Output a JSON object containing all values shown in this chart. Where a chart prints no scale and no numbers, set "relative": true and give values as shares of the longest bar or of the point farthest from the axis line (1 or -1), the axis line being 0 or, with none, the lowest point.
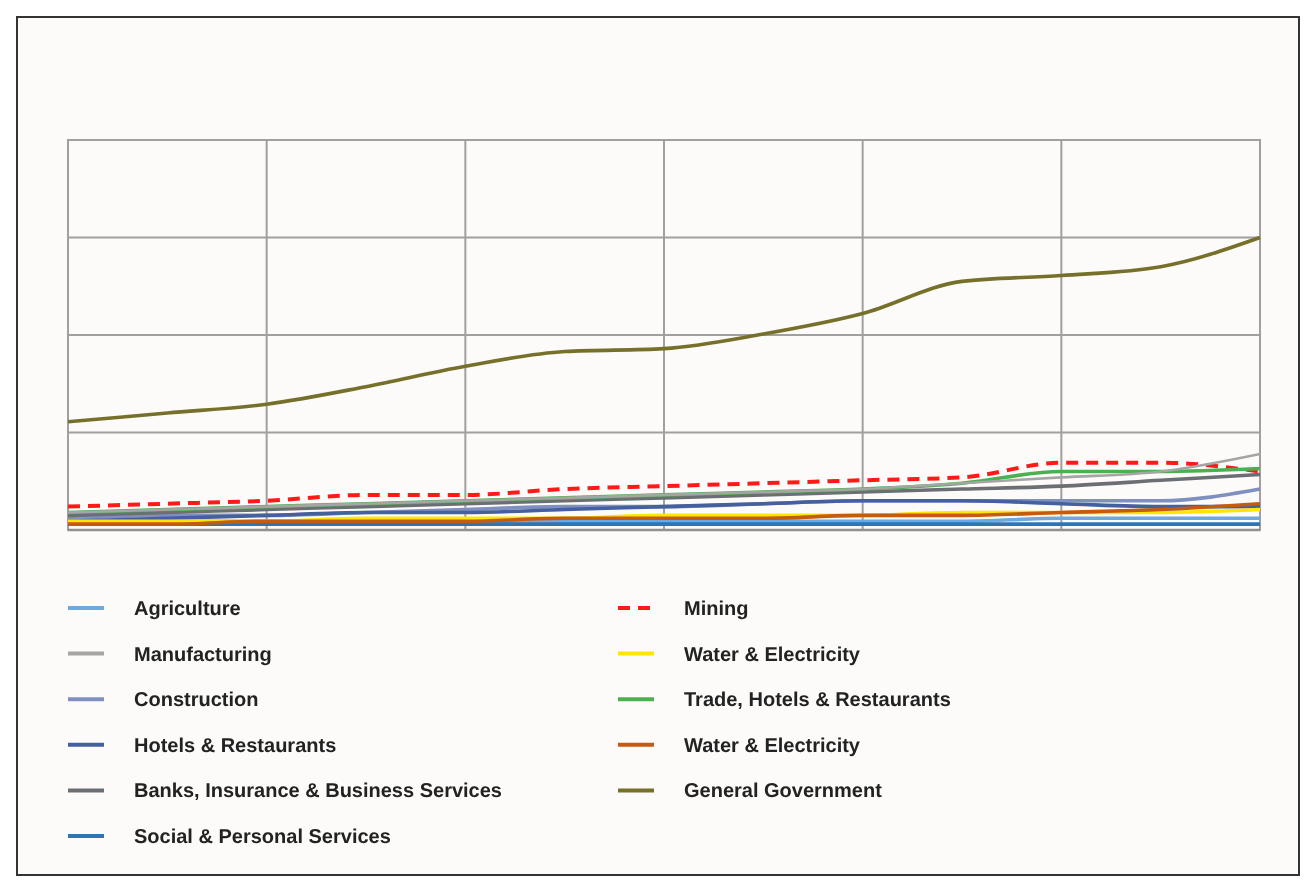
{
  "chart_data": {
    "type": "line",
    "relative": true,
    "grid": true,
    "legend": "bottom",
    "categories": [
      null,
      null,
      null,
      null,
      null,
      null,
      null,
      null,
      null,
      null,
      null,
      null,
      null
    ],
    "series": [
      {
        "name": "Agriculture",
        "color": "#6fa8dc",
        "values": [
          0.03,
          0.03,
          0.03,
          0.03,
          0.03,
          0.03,
          0.03,
          0.03,
          0.03,
          0.03,
          0.04,
          0.04,
          0.04
        ]
      },
      {
        "name": "Manufacturing",
        "color": "#a5a5a5",
        "values": [
          0.06,
          0.07,
          0.08,
          0.09,
          0.1,
          0.11,
          0.12,
          0.13,
          0.14,
          0.16,
          0.18,
          0.2,
          0.26
        ]
      },
      {
        "name": "Construction",
        "color": "#7f8fbf",
        "values": [
          0.04,
          0.05,
          0.05,
          0.06,
          0.07,
          0.08,
          0.08,
          0.09,
          0.1,
          0.1,
          0.1,
          0.1,
          0.14
        ]
      },
      {
        "name": "Hotels & Restaurants",
        "color": "#44609e",
        "values": [
          0.03,
          0.04,
          0.05,
          0.06,
          0.06,
          0.07,
          0.08,
          0.09,
          0.1,
          0.1,
          0.09,
          0.08,
          0.08
        ]
      },
      {
        "name": "Banks, Insurance & Business Services",
        "color": "#6b6f73",
        "values": [
          0.05,
          0.06,
          0.07,
          0.08,
          0.09,
          0.1,
          0.11,
          0.12,
          0.13,
          0.14,
          0.15,
          0.17,
          0.19
        ]
      },
      {
        "name": "Social & Personal Services",
        "color": "#2e75b6",
        "values": [
          0.02,
          0.02,
          0.02,
          0.02,
          0.02,
          0.02,
          0.02,
          0.02,
          0.02,
          0.02,
          0.02,
          0.02,
          0.02
        ]
      },
      {
        "name": "Mining",
        "color": "#ff1a1a",
        "line_style": "dashed",
        "values": [
          0.08,
          0.09,
          0.1,
          0.12,
          0.12,
          0.14,
          0.15,
          0.16,
          0.17,
          0.18,
          0.23,
          0.23,
          0.2
        ]
      },
      {
        "name": "Water & Electricity",
        "color": "#ffe600",
        "values": [
          0.03,
          0.03,
          0.03,
          0.04,
          0.04,
          0.04,
          0.05,
          0.05,
          0.05,
          0.06,
          0.06,
          0.06,
          0.07
        ]
      },
      {
        "name": "Trade, Hotels & Restaurants",
        "color": "#4caf50",
        "values": [
          0.06,
          0.07,
          0.08,
          0.09,
          0.1,
          0.11,
          0.12,
          0.13,
          0.14,
          0.16,
          0.2,
          0.2,
          0.21
        ]
      },
      {
        "name": "Water & Electricity",
        "color": "#c55a11",
        "values": [
          0.02,
          0.02,
          0.03,
          0.03,
          0.03,
          0.04,
          0.04,
          0.04,
          0.05,
          0.05,
          0.06,
          0.07,
          0.09
        ]
      },
      {
        "name": "General Government",
        "color": "#76702b",
        "values": [
          0.37,
          0.4,
          0.43,
          0.49,
          0.56,
          0.61,
          0.62,
          0.67,
          0.74,
          0.85,
          0.87,
          0.9,
          1.0
        ]
      }
    ]
  }
}
